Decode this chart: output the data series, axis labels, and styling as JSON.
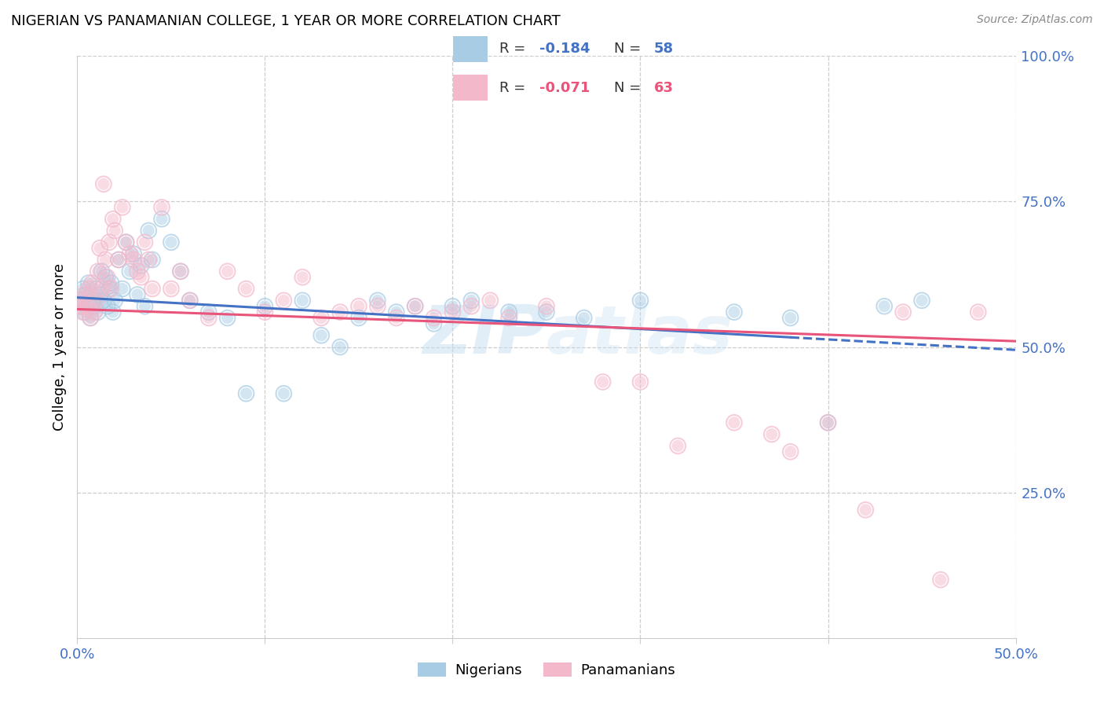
{
  "title": "NIGERIAN VS PANAMANIAN COLLEGE, 1 YEAR OR MORE CORRELATION CHART",
  "source": "Source: ZipAtlas.com",
  "ylabel": "College, 1 year or more",
  "nigerian_R": -0.184,
  "nigerian_N": 58,
  "panamanian_R": -0.071,
  "panamanian_N": 63,
  "nigerian_color": "#a8cce4",
  "panamanian_color": "#f4b8cb",
  "nigerian_line_color": "#4472c4",
  "panamanian_line_color": "#e8547a",
  "watermark": "ZIPAtlas",
  "xlim": [
    0.0,
    0.5
  ],
  "ylim": [
    0.0,
    1.0
  ],
  "nigerian_x": [
    0.001,
    0.002,
    0.003,
    0.004,
    0.005,
    0.006,
    0.007,
    0.008,
    0.009,
    0.01,
    0.011,
    0.012,
    0.013,
    0.014,
    0.015,
    0.016,
    0.017,
    0.018,
    0.019,
    0.02,
    0.022,
    0.024,
    0.026,
    0.028,
    0.03,
    0.032,
    0.034,
    0.036,
    0.038,
    0.04,
    0.045,
    0.05,
    0.055,
    0.06,
    0.07,
    0.08,
    0.09,
    0.1,
    0.11,
    0.12,
    0.13,
    0.14,
    0.15,
    0.16,
    0.17,
    0.18,
    0.19,
    0.2,
    0.21,
    0.23,
    0.25,
    0.27,
    0.3,
    0.35,
    0.38,
    0.4,
    0.43,
    0.45
  ],
  "nigerian_y": [
    0.58,
    0.57,
    0.6,
    0.56,
    0.59,
    0.61,
    0.55,
    0.58,
    0.57,
    0.6,
    0.56,
    0.59,
    0.63,
    0.58,
    0.62,
    0.57,
    0.6,
    0.61,
    0.56,
    0.58,
    0.65,
    0.6,
    0.68,
    0.63,
    0.66,
    0.59,
    0.64,
    0.57,
    0.7,
    0.65,
    0.72,
    0.68,
    0.63,
    0.58,
    0.56,
    0.55,
    0.42,
    0.57,
    0.42,
    0.58,
    0.52,
    0.5,
    0.55,
    0.58,
    0.56,
    0.57,
    0.54,
    0.57,
    0.58,
    0.56,
    0.56,
    0.55,
    0.58,
    0.56,
    0.55,
    0.37,
    0.57,
    0.58
  ],
  "panamanian_x": [
    0.001,
    0.002,
    0.003,
    0.004,
    0.005,
    0.006,
    0.007,
    0.008,
    0.009,
    0.01,
    0.011,
    0.012,
    0.013,
    0.014,
    0.015,
    0.016,
    0.017,
    0.018,
    0.019,
    0.02,
    0.022,
    0.024,
    0.026,
    0.028,
    0.03,
    0.032,
    0.034,
    0.036,
    0.038,
    0.04,
    0.045,
    0.05,
    0.055,
    0.06,
    0.07,
    0.08,
    0.09,
    0.1,
    0.11,
    0.12,
    0.13,
    0.14,
    0.15,
    0.16,
    0.17,
    0.18,
    0.19,
    0.2,
    0.21,
    0.22,
    0.23,
    0.25,
    0.28,
    0.3,
    0.32,
    0.35,
    0.37,
    0.38,
    0.4,
    0.42,
    0.44,
    0.46,
    0.48
  ],
  "panamanian_y": [
    0.57,
    0.58,
    0.56,
    0.59,
    0.57,
    0.6,
    0.55,
    0.61,
    0.56,
    0.58,
    0.63,
    0.67,
    0.6,
    0.78,
    0.65,
    0.62,
    0.68,
    0.6,
    0.72,
    0.7,
    0.65,
    0.74,
    0.68,
    0.66,
    0.65,
    0.63,
    0.62,
    0.68,
    0.65,
    0.6,
    0.74,
    0.6,
    0.63,
    0.58,
    0.55,
    0.63,
    0.6,
    0.56,
    0.58,
    0.62,
    0.55,
    0.56,
    0.57,
    0.57,
    0.55,
    0.57,
    0.55,
    0.56,
    0.57,
    0.58,
    0.55,
    0.57,
    0.44,
    0.44,
    0.33,
    0.37,
    0.35,
    0.32,
    0.37,
    0.22,
    0.56,
    0.1,
    0.56
  ]
}
